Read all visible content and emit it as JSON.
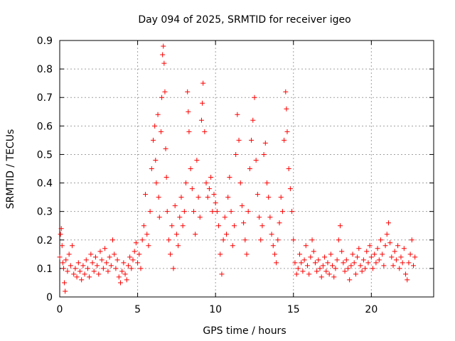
{
  "chart_data": {
    "type": "scatter",
    "title": "Day 094 of 2025, SRMTID for receiver igeo",
    "xlabel": "GPS time / hours",
    "ylabel": "SRMTID / TECUs",
    "xlim": [
      0,
      24
    ],
    "ylim": [
      0,
      0.9
    ],
    "xticks": [
      "0",
      "5",
      "10",
      "15",
      "20"
    ],
    "xtick_values": [
      0,
      5,
      10,
      15,
      20
    ],
    "yticks": [
      "0",
      "0.1",
      "0.2",
      "0.3",
      "0.4",
      "0.5",
      "0.6",
      "0.7",
      "0.8",
      "0.9"
    ],
    "ytick_values": [
      0,
      0.1,
      0.2,
      0.3,
      0.4,
      0.5,
      0.6,
      0.7,
      0.8,
      0.9
    ],
    "grid": true,
    "marker": "+",
    "color": "#ff0000",
    "series": [
      {
        "name": "SRMTID",
        "points": [
          [
            0.0,
            0.14
          ],
          [
            0.05,
            0.22
          ],
          [
            0.1,
            0.24
          ],
          [
            0.15,
            0.18
          ],
          [
            0.2,
            0.12
          ],
          [
            0.25,
            0.1
          ],
          [
            0.3,
            0.05
          ],
          [
            0.35,
            0.02
          ],
          [
            0.4,
            0.13
          ],
          [
            0.5,
            0.09
          ],
          [
            0.6,
            0.15
          ],
          [
            0.7,
            0.11
          ],
          [
            0.8,
            0.18
          ],
          [
            0.9,
            0.08
          ],
          [
            1.0,
            0.1
          ],
          [
            1.1,
            0.07
          ],
          [
            1.2,
            0.12
          ],
          [
            1.3,
            0.09
          ],
          [
            1.4,
            0.06
          ],
          [
            1.5,
            0.11
          ],
          [
            1.6,
            0.08
          ],
          [
            1.7,
            0.13
          ],
          [
            1.8,
            0.1
          ],
          [
            1.9,
            0.07
          ],
          [
            2.0,
            0.15
          ],
          [
            2.1,
            0.12
          ],
          [
            2.2,
            0.09
          ],
          [
            2.3,
            0.14
          ],
          [
            2.4,
            0.11
          ],
          [
            2.5,
            0.08
          ],
          [
            2.6,
            0.16
          ],
          [
            2.7,
            0.13
          ],
          [
            2.8,
            0.1
          ],
          [
            2.9,
            0.17
          ],
          [
            3.0,
            0.12
          ],
          [
            3.1,
            0.09
          ],
          [
            3.2,
            0.14
          ],
          [
            3.3,
            0.11
          ],
          [
            3.4,
            0.2
          ],
          [
            3.5,
            0.15
          ],
          [
            3.6,
            0.1
          ],
          [
            3.7,
            0.13
          ],
          [
            3.8,
            0.07
          ],
          [
            3.9,
            0.05
          ],
          [
            4.0,
            0.09
          ],
          [
            4.1,
            0.12
          ],
          [
            4.2,
            0.08
          ],
          [
            4.3,
            0.06
          ],
          [
            4.4,
            0.11
          ],
          [
            4.5,
            0.14
          ],
          [
            4.6,
            0.1
          ],
          [
            4.7,
            0.13
          ],
          [
            4.8,
            0.16
          ],
          [
            4.9,
            0.19
          ],
          [
            5.0,
            0.12
          ],
          [
            5.1,
            0.15
          ],
          [
            5.2,
            0.1
          ],
          [
            5.3,
            0.2
          ],
          [
            5.4,
            0.25
          ],
          [
            5.5,
            0.36
          ],
          [
            5.6,
            0.22
          ],
          [
            5.7,
            0.18
          ],
          [
            5.8,
            0.3
          ],
          [
            5.9,
            0.45
          ],
          [
            6.0,
            0.55
          ],
          [
            6.1,
            0.6
          ],
          [
            6.15,
            0.48
          ],
          [
            6.2,
            0.4
          ],
          [
            6.3,
            0.64
          ],
          [
            6.35,
            0.35
          ],
          [
            6.4,
            0.28
          ],
          [
            6.5,
            0.58
          ],
          [
            6.55,
            0.7
          ],
          [
            6.6,
            0.85
          ],
          [
            6.65,
            0.88
          ],
          [
            6.7,
            0.82
          ],
          [
            6.75,
            0.72
          ],
          [
            6.8,
            0.52
          ],
          [
            6.85,
            0.42
          ],
          [
            6.9,
            0.3
          ],
          [
            7.0,
            0.2
          ],
          [
            7.1,
            0.15
          ],
          [
            7.2,
            0.25
          ],
          [
            7.3,
            0.1
          ],
          [
            7.4,
            0.32
          ],
          [
            7.5,
            0.22
          ],
          [
            7.6,
            0.18
          ],
          [
            7.7,
            0.28
          ],
          [
            7.8,
            0.35
          ],
          [
            7.9,
            0.25
          ],
          [
            8.0,
            0.3
          ],
          [
            8.1,
            0.4
          ],
          [
            8.2,
            0.72
          ],
          [
            8.25,
            0.65
          ],
          [
            8.3,
            0.58
          ],
          [
            8.4,
            0.45
          ],
          [
            8.5,
            0.38
          ],
          [
            8.6,
            0.3
          ],
          [
            8.7,
            0.22
          ],
          [
            8.8,
            0.48
          ],
          [
            8.9,
            0.35
          ],
          [
            9.0,
            0.28
          ],
          [
            9.1,
            0.62
          ],
          [
            9.15,
            0.68
          ],
          [
            9.2,
            0.75
          ],
          [
            9.3,
            0.58
          ],
          [
            9.4,
            0.4
          ],
          [
            9.5,
            0.35
          ],
          [
            9.6,
            0.38
          ],
          [
            9.7,
            0.42
          ],
          [
            9.8,
            0.3
          ],
          [
            9.9,
            0.36
          ],
          [
            10.0,
            0.33
          ],
          [
            10.1,
            0.3
          ],
          [
            10.2,
            0.25
          ],
          [
            10.3,
            0.15
          ],
          [
            10.4,
            0.08
          ],
          [
            10.5,
            0.2
          ],
          [
            10.6,
            0.28
          ],
          [
            10.7,
            0.22
          ],
          [
            10.8,
            0.35
          ],
          [
            10.9,
            0.42
          ],
          [
            11.0,
            0.3
          ],
          [
            11.1,
            0.18
          ],
          [
            11.2,
            0.25
          ],
          [
            11.3,
            0.5
          ],
          [
            11.4,
            0.64
          ],
          [
            11.5,
            0.55
          ],
          [
            11.6,
            0.4
          ],
          [
            11.7,
            0.32
          ],
          [
            11.8,
            0.26
          ],
          [
            11.9,
            0.2
          ],
          [
            12.0,
            0.15
          ],
          [
            12.1,
            0.3
          ],
          [
            12.2,
            0.45
          ],
          [
            12.3,
            0.55
          ],
          [
            12.4,
            0.62
          ],
          [
            12.5,
            0.7
          ],
          [
            12.6,
            0.48
          ],
          [
            12.7,
            0.36
          ],
          [
            12.8,
            0.28
          ],
          [
            12.9,
            0.2
          ],
          [
            13.0,
            0.25
          ],
          [
            13.1,
            0.5
          ],
          [
            13.2,
            0.54
          ],
          [
            13.3,
            0.4
          ],
          [
            13.4,
            0.35
          ],
          [
            13.5,
            0.28
          ],
          [
            13.6,
            0.22
          ],
          [
            13.7,
            0.18
          ],
          [
            13.8,
            0.15
          ],
          [
            13.9,
            0.12
          ],
          [
            14.0,
            0.2
          ],
          [
            14.1,
            0.26
          ],
          [
            14.2,
            0.35
          ],
          [
            14.3,
            0.3
          ],
          [
            14.4,
            0.55
          ],
          [
            14.5,
            0.72
          ],
          [
            14.55,
            0.66
          ],
          [
            14.6,
            0.58
          ],
          [
            14.7,
            0.45
          ],
          [
            14.8,
            0.38
          ],
          [
            14.9,
            0.3
          ],
          [
            15.0,
            0.2
          ],
          [
            15.1,
            0.12
          ],
          [
            15.2,
            0.08
          ],
          [
            15.3,
            0.1
          ],
          [
            15.4,
            0.15
          ],
          [
            15.5,
            0.12
          ],
          [
            15.6,
            0.09
          ],
          [
            15.7,
            0.13
          ],
          [
            15.8,
            0.18
          ],
          [
            15.9,
            0.11
          ],
          [
            16.0,
            0.08
          ],
          [
            16.1,
            0.14
          ],
          [
            16.2,
            0.2
          ],
          [
            16.3,
            0.16
          ],
          [
            16.4,
            0.12
          ],
          [
            16.5,
            0.09
          ],
          [
            16.6,
            0.13
          ],
          [
            16.7,
            0.1
          ],
          [
            16.8,
            0.07
          ],
          [
            16.9,
            0.11
          ],
          [
            17.0,
            0.14
          ],
          [
            17.1,
            0.09
          ],
          [
            17.2,
            0.12
          ],
          [
            17.3,
            0.08
          ],
          [
            17.4,
            0.15
          ],
          [
            17.5,
            0.11
          ],
          [
            17.6,
            0.07
          ],
          [
            17.7,
            0.1
          ],
          [
            17.8,
            0.13
          ],
          [
            17.9,
            0.2
          ],
          [
            18.0,
            0.25
          ],
          [
            18.1,
            0.16
          ],
          [
            18.2,
            0.12
          ],
          [
            18.3,
            0.09
          ],
          [
            18.4,
            0.13
          ],
          [
            18.5,
            0.1
          ],
          [
            18.6,
            0.06
          ],
          [
            18.7,
            0.11
          ],
          [
            18.8,
            0.15
          ],
          [
            18.9,
            0.12
          ],
          [
            19.0,
            0.08
          ],
          [
            19.1,
            0.14
          ],
          [
            19.2,
            0.17
          ],
          [
            19.3,
            0.11
          ],
          [
            19.4,
            0.09
          ],
          [
            19.5,
            0.13
          ],
          [
            19.6,
            0.1
          ],
          [
            19.7,
            0.16
          ],
          [
            19.8,
            0.12
          ],
          [
            19.9,
            0.18
          ],
          [
            20.0,
            0.14
          ],
          [
            20.1,
            0.1
          ],
          [
            20.2,
            0.15
          ],
          [
            20.3,
            0.12
          ],
          [
            20.4,
            0.17
          ],
          [
            20.5,
            0.13
          ],
          [
            20.6,
            0.2
          ],
          [
            20.7,
            0.15
          ],
          [
            20.8,
            0.11
          ],
          [
            20.9,
            0.18
          ],
          [
            21.0,
            0.22
          ],
          [
            21.1,
            0.26
          ],
          [
            21.2,
            0.19
          ],
          [
            21.3,
            0.14
          ],
          [
            21.4,
            0.11
          ],
          [
            21.5,
            0.16
          ],
          [
            21.6,
            0.13
          ],
          [
            21.7,
            0.18
          ],
          [
            21.8,
            0.1
          ],
          [
            21.9,
            0.14
          ],
          [
            22.0,
            0.12
          ],
          [
            22.1,
            0.17
          ],
          [
            22.2,
            0.08
          ],
          [
            22.3,
            0.06
          ],
          [
            22.4,
            0.12
          ],
          [
            22.5,
            0.15
          ],
          [
            22.6,
            0.2
          ],
          [
            22.7,
            0.11
          ],
          [
            22.8,
            0.14
          ]
        ]
      }
    ]
  }
}
